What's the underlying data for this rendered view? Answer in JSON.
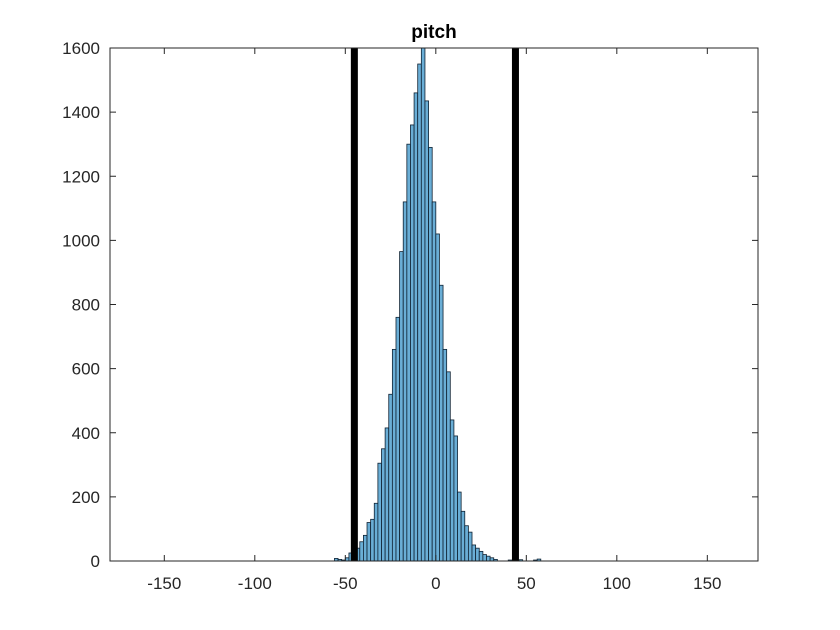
{
  "chart_data": {
    "type": "bar",
    "title": "pitch",
    "xlabel": "",
    "ylabel": "",
    "xlim": [
      -180,
      178
    ],
    "ylim": [
      0,
      1600
    ],
    "xticks": [
      -150,
      -100,
      -50,
      0,
      50,
      100,
      150
    ],
    "yticks": [
      0,
      200,
      400,
      600,
      800,
      1000,
      1200,
      1400,
      1600
    ],
    "grid": false,
    "bin_width": 2,
    "bins": [
      {
        "x0": -56,
        "count": 8
      },
      {
        "x0": -54,
        "count": 5
      },
      {
        "x0": -52,
        "count": 3
      },
      {
        "x0": -50,
        "count": 10
      },
      {
        "x0": -48,
        "count": 25
      },
      {
        "x0": -46,
        "count": 30
      },
      {
        "x0": -44,
        "count": 40
      },
      {
        "x0": -42,
        "count": 60
      },
      {
        "x0": -40,
        "count": 80
      },
      {
        "x0": -38,
        "count": 120
      },
      {
        "x0": -36,
        "count": 130
      },
      {
        "x0": -34,
        "count": 180
      },
      {
        "x0": -32,
        "count": 305
      },
      {
        "x0": -30,
        "count": 350
      },
      {
        "x0": -28,
        "count": 415
      },
      {
        "x0": -26,
        "count": 520
      },
      {
        "x0": -24,
        "count": 660
      },
      {
        "x0": -22,
        "count": 760
      },
      {
        "x0": -20,
        "count": 965
      },
      {
        "x0": -18,
        "count": 1120
      },
      {
        "x0": -16,
        "count": 1300
      },
      {
        "x0": -14,
        "count": 1360
      },
      {
        "x0": -12,
        "count": 1460
      },
      {
        "x0": -10,
        "count": 1550
      },
      {
        "x0": -8,
        "count": 1625
      },
      {
        "x0": -6,
        "count": 1435
      },
      {
        "x0": -4,
        "count": 1290
      },
      {
        "x0": -2,
        "count": 1120
      },
      {
        "x0": 0,
        "count": 1020
      },
      {
        "x0": 2,
        "count": 860
      },
      {
        "x0": 4,
        "count": 660
      },
      {
        "x0": 6,
        "count": 590
      },
      {
        "x0": 8,
        "count": 440
      },
      {
        "x0": 10,
        "count": 390
      },
      {
        "x0": 12,
        "count": 215
      },
      {
        "x0": 14,
        "count": 155
      },
      {
        "x0": 16,
        "count": 110
      },
      {
        "x0": 18,
        "count": 90
      },
      {
        "x0": 20,
        "count": 50
      },
      {
        "x0": 22,
        "count": 40
      },
      {
        "x0": 24,
        "count": 30
      },
      {
        "x0": 26,
        "count": 20
      },
      {
        "x0": 28,
        "count": 15
      },
      {
        "x0": 30,
        "count": 10
      },
      {
        "x0": 32,
        "count": 5
      },
      {
        "x0": 40,
        "count": 3
      },
      {
        "x0": 46,
        "count": 4
      },
      {
        "x0": 54,
        "count": 3
      },
      {
        "x0": 56,
        "count": 6
      }
    ],
    "threshold_lines": [
      -45,
      44
    ],
    "colors": {
      "bar_fill": "#6aaed6",
      "bar_edge": "#0f2233",
      "threshold_line": "#000000",
      "axis": "#262626"
    }
  }
}
